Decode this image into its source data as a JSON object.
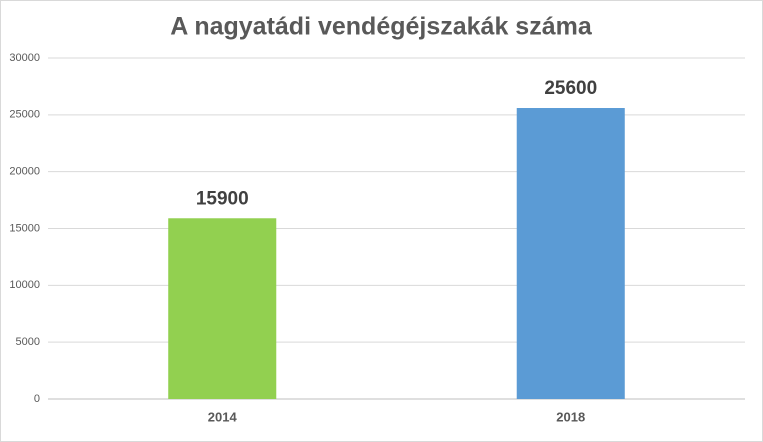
{
  "chart_data": {
    "type": "bar",
    "title": "A nagyatádi vendégéjszakák száma",
    "categories": [
      "2014",
      "2018"
    ],
    "values": [
      15900,
      25600
    ],
    "colors": [
      "#92d050",
      "#5b9bd5"
    ],
    "ylim": [
      0,
      30000
    ],
    "yticks": [
      0,
      5000,
      10000,
      15000,
      20000,
      25000,
      30000
    ],
    "grid": true
  }
}
